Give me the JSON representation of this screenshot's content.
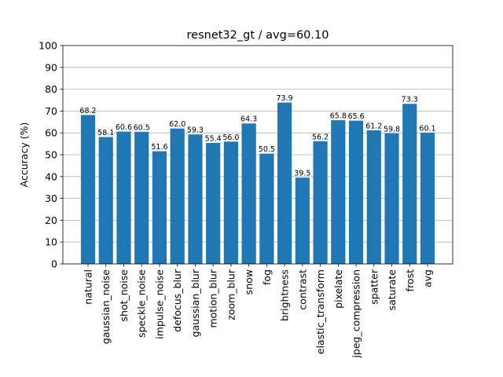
{
  "chart_data": {
    "type": "bar",
    "title": "resnet32_gt / avg=60.10",
    "xlabel": "",
    "ylabel": "Accuracy (%)",
    "ylim": [
      0,
      100
    ],
    "yticks": [
      0,
      10,
      20,
      30,
      40,
      50,
      60,
      70,
      80,
      90,
      100
    ],
    "grid": "y",
    "bar_color": "#1f77b4",
    "categories": [
      "natural",
      "gaussian_noise",
      "shot_noise",
      "speckle_noise",
      "impulse_noise",
      "defocus_blur",
      "gaussian_blur",
      "motion_blur",
      "zoom_blur",
      "snow",
      "fog",
      "brightness",
      "contrast",
      "elastic_transform",
      "pixelate",
      "jpeg_compression",
      "spatter",
      "saturate",
      "frost",
      "avg"
    ],
    "values": [
      68.2,
      58.1,
      60.6,
      60.5,
      51.6,
      62.0,
      59.3,
      55.4,
      56.0,
      64.3,
      50.5,
      73.9,
      39.5,
      56.2,
      65.8,
      65.6,
      61.2,
      59.8,
      73.3,
      60.1
    ],
    "data_labels": [
      "68.2",
      "58.1",
      "60.6",
      "60.5",
      "51.6",
      "62.0",
      "59.3",
      "55.4",
      "56.0",
      "64.3",
      "50.5",
      "73.9",
      "39.5",
      "56.2",
      "65.8",
      "65.6",
      "61.2",
      "59.8",
      "73.3",
      "60.1"
    ]
  }
}
